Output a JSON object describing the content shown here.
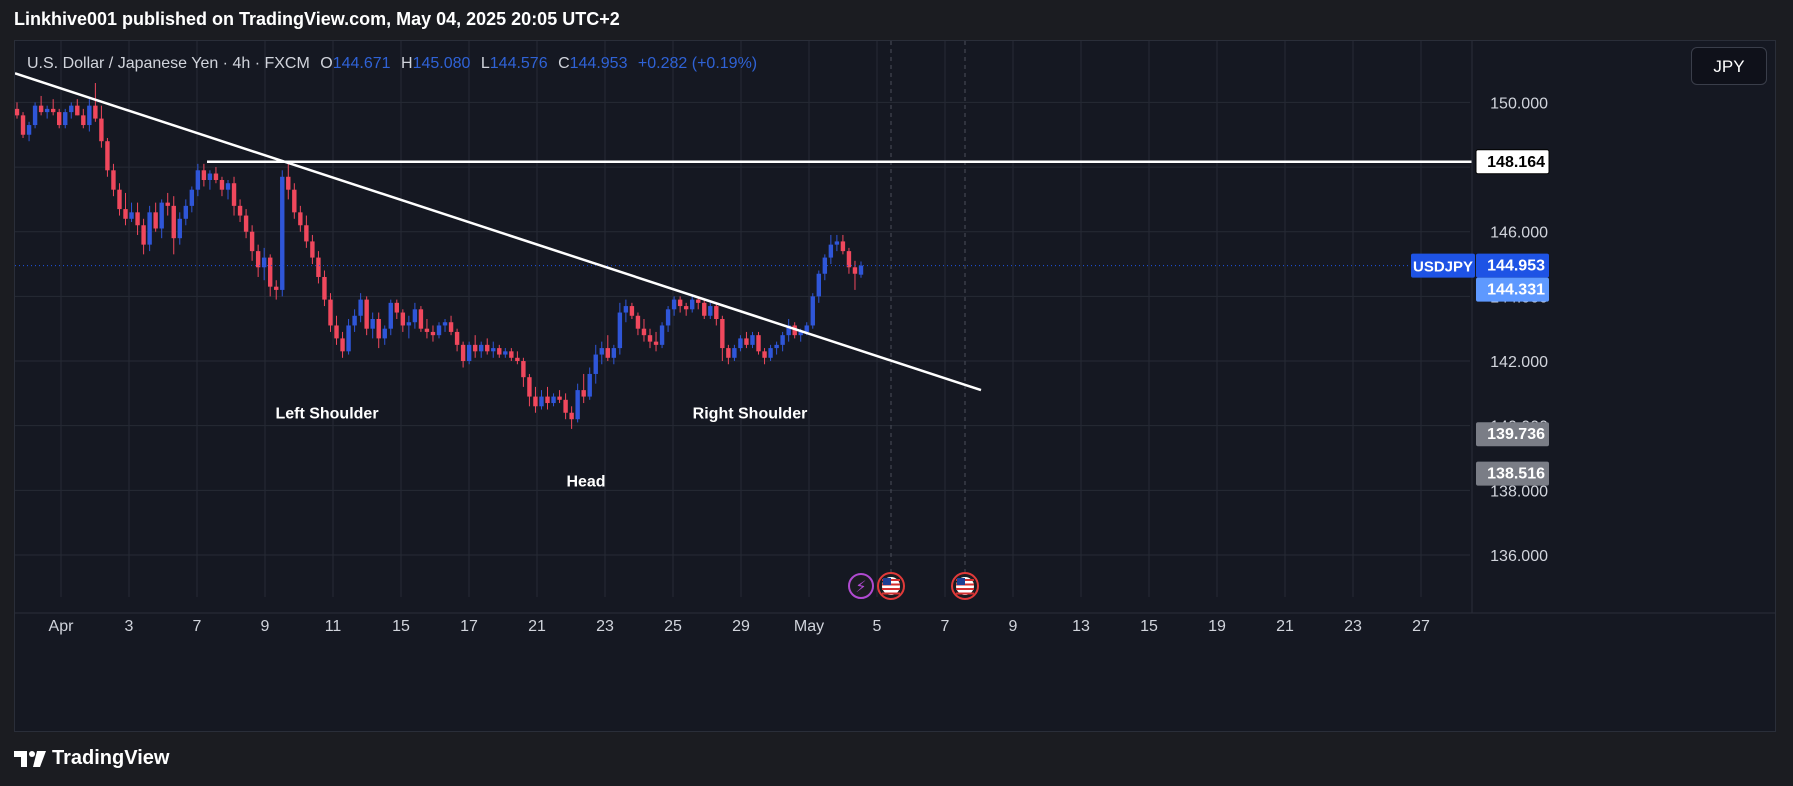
{
  "header": {
    "publisher_line": "Linkhive001 published on TradingView.com, May 04, 2025 20:05 UTC+2"
  },
  "legend": {
    "symbol_line": "U.S. Dollar / Japanese Yen · 4h · FXCM",
    "open_label": "O",
    "open": "144.671",
    "high_label": "H",
    "high": "145.080",
    "low_label": "L",
    "low": "144.576",
    "close_label": "C",
    "close": "144.953",
    "change": "+0.282 (+0.19%)"
  },
  "toolbar": {
    "currency": "JPY"
  },
  "footer": {
    "brand": "TradingView"
  },
  "colors": {
    "up": "#2f56d8",
    "down": "#f0485d",
    "background": "#151822",
    "grid": "#262a35",
    "line": "#ffffff",
    "symbol_badge": "#1e53e5",
    "level_badge": "#5e99ff",
    "grey_badge": "#7a7d86",
    "event_purple": "#b04ad1",
    "event_red": "#e13a3a"
  },
  "chart_data": {
    "type": "candlestick",
    "title": "U.S. Dollar / Japanese Yen · 4h · FXCM",
    "x_ticks": [
      "Apr",
      "3",
      "7",
      "9",
      "11",
      "15",
      "17",
      "21",
      "23",
      "25",
      "29",
      "May",
      "5",
      "7",
      "9",
      "13",
      "15",
      "19",
      "21",
      "23",
      "27"
    ],
    "y_ticks": [
      "150.000",
      "148.000",
      "146.000",
      "144.000",
      "142.000",
      "140.000",
      "138.000",
      "136.000"
    ],
    "ylim": [
      134.7,
      151.9
    ],
    "candles": [
      [
        149.8,
        150.0,
        149.5,
        149.6
      ],
      [
        149.6,
        149.7,
        148.9,
        149.0
      ],
      [
        149.0,
        149.4,
        148.8,
        149.3
      ],
      [
        149.3,
        150.0,
        149.2,
        149.9
      ],
      [
        149.9,
        150.2,
        149.6,
        149.7
      ],
      [
        149.7,
        149.9,
        149.5,
        149.8
      ],
      [
        149.8,
        150.1,
        149.6,
        149.7
      ],
      [
        149.7,
        149.8,
        149.2,
        149.3
      ],
      [
        149.3,
        149.8,
        149.2,
        149.7
      ],
      [
        149.7,
        150.0,
        149.5,
        149.9
      ],
      [
        149.9,
        150.1,
        149.6,
        149.6
      ],
      [
        149.6,
        149.8,
        149.2,
        149.3
      ],
      [
        149.3,
        150.1,
        149.1,
        149.9
      ],
      [
        149.9,
        150.6,
        149.4,
        149.5
      ],
      [
        149.5,
        149.9,
        148.6,
        148.8
      ],
      [
        148.8,
        148.9,
        147.7,
        147.9
      ],
      [
        147.9,
        148.1,
        147.1,
        147.3
      ],
      [
        147.3,
        147.5,
        146.5,
        146.7
      ],
      [
        146.7,
        147.2,
        146.2,
        146.4
      ],
      [
        146.4,
        146.9,
        146.3,
        146.6
      ],
      [
        146.6,
        146.9,
        145.9,
        146.2
      ],
      [
        146.2,
        146.4,
        145.3,
        145.6
      ],
      [
        145.6,
        146.8,
        145.4,
        146.6
      ],
      [
        146.6,
        146.9,
        146.0,
        146.1
      ],
      [
        146.1,
        147.0,
        145.8,
        146.9
      ],
      [
        146.9,
        147.2,
        146.5,
        146.8
      ],
      [
        146.8,
        147.1,
        145.3,
        145.8
      ],
      [
        145.8,
        146.6,
        145.6,
        146.4
      ],
      [
        146.4,
        147.0,
        146.2,
        146.8
      ],
      [
        146.8,
        147.4,
        146.6,
        147.3
      ],
      [
        147.3,
        148.1,
        147.1,
        147.9
      ],
      [
        147.9,
        148.1,
        147.4,
        147.6
      ],
      [
        147.6,
        147.9,
        147.3,
        147.8
      ],
      [
        147.8,
        148.0,
        147.5,
        147.6
      ],
      [
        147.6,
        147.7,
        147.1,
        147.3
      ],
      [
        147.3,
        147.6,
        147.0,
        147.5
      ],
      [
        147.5,
        147.7,
        146.5,
        146.8
      ],
      [
        146.8,
        147.0,
        146.3,
        146.5
      ],
      [
        146.5,
        146.7,
        145.8,
        146.0
      ],
      [
        146.0,
        146.2,
        145.1,
        145.4
      ],
      [
        145.4,
        145.6,
        144.6,
        144.9
      ],
      [
        144.9,
        145.5,
        144.5,
        145.2
      ],
      [
        145.2,
        145.3,
        144.0,
        144.3
      ],
      [
        144.3,
        144.5,
        143.9,
        144.2
      ],
      [
        144.2,
        147.9,
        144.0,
        147.7
      ],
      [
        147.7,
        148.2,
        147.0,
        147.3
      ],
      [
        147.3,
        147.5,
        146.4,
        146.6
      ],
      [
        146.6,
        146.8,
        146.0,
        146.2
      ],
      [
        146.2,
        146.5,
        145.5,
        145.7
      ],
      [
        145.7,
        145.9,
        145.0,
        145.2
      ],
      [
        145.2,
        145.4,
        144.4,
        144.6
      ],
      [
        144.6,
        144.8,
        143.7,
        143.9
      ],
      [
        143.9,
        144.1,
        142.9,
        143.1
      ],
      [
        143.1,
        143.4,
        142.5,
        142.7
      ],
      [
        142.7,
        142.9,
        142.1,
        142.3
      ],
      [
        142.3,
        143.3,
        142.2,
        143.1
      ],
      [
        143.1,
        143.6,
        142.9,
        143.4
      ],
      [
        143.4,
        144.1,
        143.2,
        143.9
      ],
      [
        143.9,
        144.0,
        142.8,
        143.0
      ],
      [
        143.0,
        143.5,
        142.7,
        143.3
      ],
      [
        143.3,
        143.5,
        142.4,
        142.7
      ],
      [
        142.7,
        143.1,
        142.5,
        143.0
      ],
      [
        143.0,
        143.9,
        142.8,
        143.8
      ],
      [
        143.8,
        143.9,
        143.3,
        143.5
      ],
      [
        143.5,
        143.6,
        142.9,
        143.1
      ],
      [
        143.1,
        143.4,
        142.7,
        143.2
      ],
      [
        143.2,
        143.8,
        143.0,
        143.6
      ],
      [
        143.6,
        143.7,
        142.9,
        143.0
      ],
      [
        143.0,
        143.3,
        142.7,
        142.9
      ],
      [
        142.9,
        143.1,
        142.6,
        142.8
      ],
      [
        142.8,
        143.2,
        142.7,
        143.1
      ],
      [
        143.1,
        143.3,
        142.9,
        143.2
      ],
      [
        143.2,
        143.4,
        142.8,
        142.9
      ],
      [
        142.9,
        143.0,
        142.3,
        142.5
      ],
      [
        142.5,
        142.6,
        141.8,
        142.0
      ],
      [
        142.0,
        142.6,
        141.9,
        142.5
      ],
      [
        142.5,
        142.8,
        142.1,
        142.3
      ],
      [
        142.3,
        142.6,
        142.1,
        142.5
      ],
      [
        142.5,
        142.7,
        142.2,
        142.3
      ],
      [
        142.3,
        142.6,
        142.1,
        142.4
      ],
      [
        142.4,
        142.5,
        142.1,
        142.2
      ],
      [
        142.2,
        142.4,
        142.1,
        142.3
      ],
      [
        142.3,
        142.4,
        142.0,
        142.1
      ],
      [
        142.1,
        142.3,
        141.9,
        142.0
      ],
      [
        142.0,
        142.1,
        141.2,
        141.5
      ],
      [
        141.5,
        141.6,
        140.6,
        140.9
      ],
      [
        140.9,
        141.2,
        140.4,
        140.6
      ],
      [
        140.6,
        141.1,
        140.5,
        140.9
      ],
      [
        140.9,
        141.2,
        140.5,
        140.7
      ],
      [
        140.7,
        141.0,
        140.6,
        140.9
      ],
      [
        140.9,
        141.1,
        140.7,
        140.8
      ],
      [
        140.8,
        141.0,
        140.2,
        140.4
      ],
      [
        140.4,
        140.6,
        139.9,
        140.2
      ],
      [
        140.2,
        141.3,
        140.1,
        141.1
      ],
      [
        141.1,
        141.6,
        140.7,
        140.9
      ],
      [
        140.9,
        141.8,
        140.8,
        141.6
      ],
      [
        141.6,
        142.5,
        141.3,
        142.2
      ],
      [
        142.2,
        142.6,
        141.9,
        142.4
      ],
      [
        142.4,
        142.8,
        142.0,
        142.1
      ],
      [
        142.1,
        142.5,
        141.9,
        142.4
      ],
      [
        142.4,
        143.8,
        142.2,
        143.5
      ],
      [
        143.5,
        143.9,
        143.2,
        143.7
      ],
      [
        143.7,
        143.8,
        143.3,
        143.4
      ],
      [
        143.4,
        143.5,
        142.8,
        143.0
      ],
      [
        143.0,
        143.3,
        142.6,
        142.8
      ],
      [
        142.8,
        143.0,
        142.4,
        142.6
      ],
      [
        142.6,
        142.9,
        142.3,
        142.5
      ],
      [
        142.5,
        143.2,
        142.4,
        143.1
      ],
      [
        143.1,
        143.7,
        142.9,
        143.6
      ],
      [
        143.6,
        144.0,
        143.4,
        143.9
      ],
      [
        143.9,
        144.0,
        143.5,
        143.7
      ],
      [
        143.7,
        143.8,
        143.4,
        143.6
      ],
      [
        143.6,
        144.0,
        143.5,
        143.9
      ],
      [
        143.9,
        144.0,
        143.6,
        143.8
      ],
      [
        143.8,
        143.9,
        143.3,
        143.4
      ],
      [
        143.4,
        143.8,
        143.3,
        143.7
      ],
      [
        143.7,
        143.8,
        143.1,
        143.3
      ],
      [
        143.3,
        143.4,
        142.0,
        142.4
      ],
      [
        142.4,
        142.5,
        141.9,
        142.1
      ],
      [
        142.1,
        142.5,
        142.0,
        142.4
      ],
      [
        142.4,
        142.8,
        142.3,
        142.7
      ],
      [
        142.7,
        142.9,
        142.4,
        142.5
      ],
      [
        142.5,
        142.9,
        142.4,
        142.8
      ],
      [
        142.8,
        142.9,
        142.2,
        142.3
      ],
      [
        142.3,
        142.4,
        141.9,
        142.1
      ],
      [
        142.1,
        142.5,
        142.0,
        142.4
      ],
      [
        142.4,
        142.6,
        142.2,
        142.5
      ],
      [
        142.5,
        142.9,
        142.3,
        142.8
      ],
      [
        142.8,
        143.3,
        142.6,
        143.1
      ],
      [
        143.1,
        143.2,
        142.7,
        142.8
      ],
      [
        142.8,
        143.0,
        142.6,
        142.9
      ],
      [
        142.9,
        143.2,
        142.8,
        143.1
      ],
      [
        143.1,
        144.1,
        143.0,
        144.0
      ],
      [
        144.0,
        144.8,
        143.8,
        144.7
      ],
      [
        144.7,
        145.3,
        144.5,
        145.2
      ],
      [
        145.2,
        145.9,
        145.0,
        145.6
      ],
      [
        145.6,
        145.9,
        145.4,
        145.7
      ],
      [
        145.7,
        145.9,
        145.3,
        145.4
      ],
      [
        145.4,
        145.5,
        144.7,
        144.9
      ],
      [
        144.9,
        145.1,
        144.2,
        144.7
      ],
      [
        144.671,
        145.08,
        144.576,
        144.953
      ]
    ],
    "trendline": {
      "start": [
        150.9
      ],
      "end": [
        141.1
      ],
      "label": "descending trendline"
    },
    "levels": [
      {
        "value": 148.164,
        "label": "148.164",
        "style": "white"
      },
      {
        "value": 144.953,
        "label": "144.953",
        "style": "symbol"
      },
      {
        "value": 144.331,
        "label": "144.331",
        "style": "blue"
      },
      {
        "value": 139.736,
        "label": "139.736",
        "style": "grey"
      },
      {
        "value": 138.516,
        "label": "138.516",
        "style": "grey"
      }
    ],
    "symbol_badge": "USDJPY",
    "annotations": [
      {
        "text": "Left Shoulder",
        "value": 140.4
      },
      {
        "text": "Right Shoulder",
        "value": 140.4
      },
      {
        "text": "Head",
        "value": 138.3
      }
    ]
  }
}
